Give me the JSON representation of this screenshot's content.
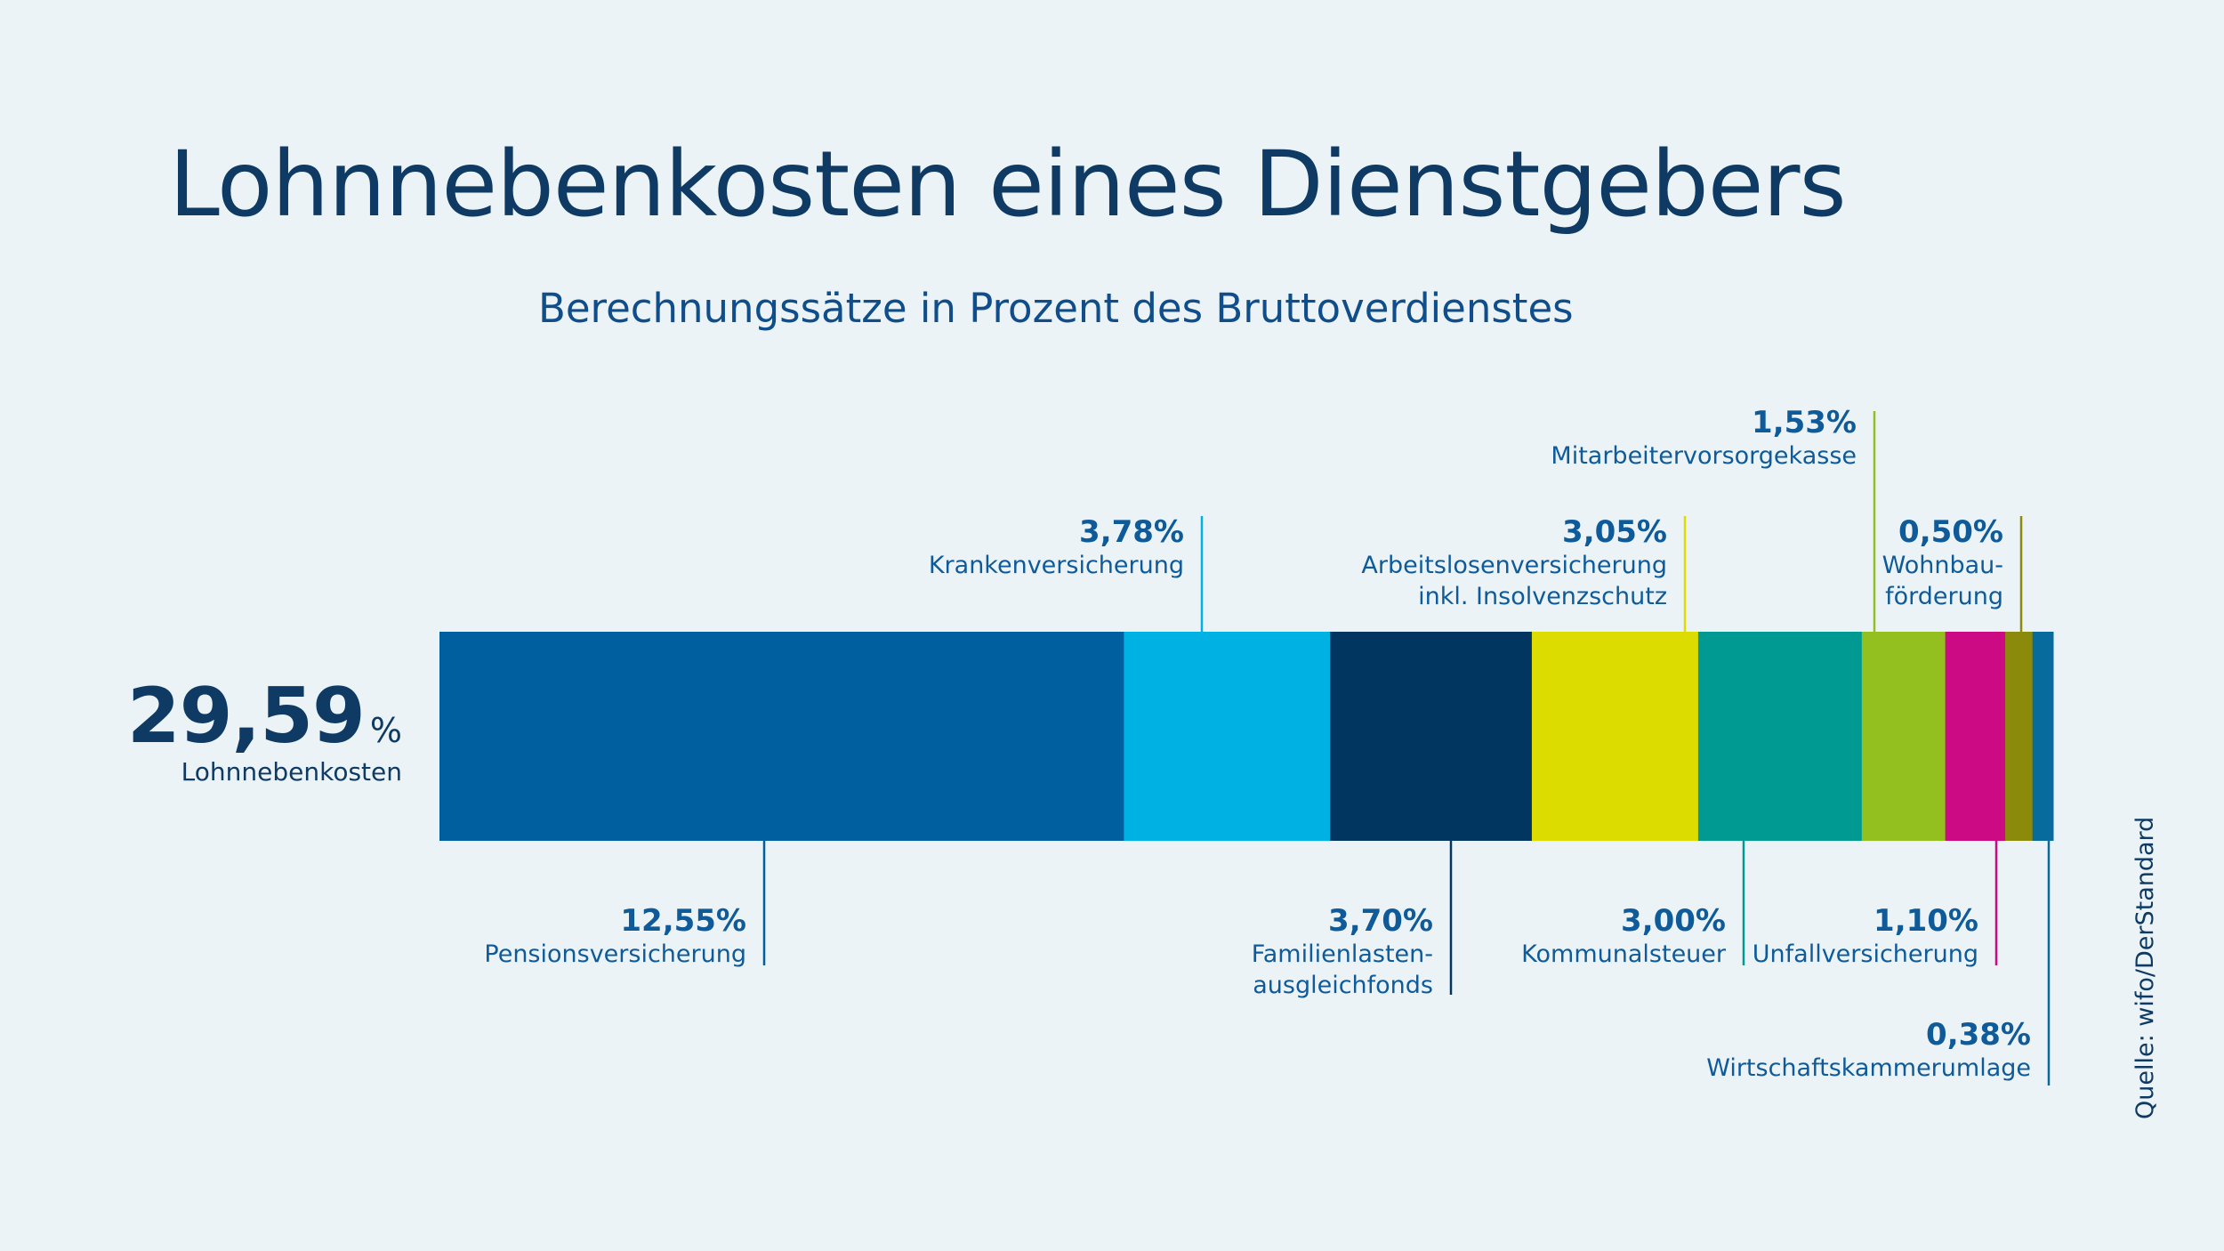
{
  "title": "Lohnnebenkosten eines Dienstgebers",
  "subtitle": "Berechnungssätze in Prozent des Bruttoverdienstes",
  "total": {
    "value": "29,59",
    "unit": "%",
    "label": "Lohnnebenkosten"
  },
  "source": "Quelle: wifo/DerStandard",
  "chart_data": {
    "type": "bar",
    "orientation": "horizontal-stacked",
    "title": "Lohnnebenkosten eines Dienstgebers",
    "subtitle": "Berechnungssätze in Prozent des Bruttoverdienstes",
    "total": 29.59,
    "segments": [
      {
        "name": "Pensionsversicherung",
        "value": 12.55,
        "label": "12,55%",
        "color": "#005f9e",
        "lines": [
          "Pensionsversicherung"
        ],
        "side": "below"
      },
      {
        "name": "Krankenversicherung",
        "value": 3.78,
        "label": "3,78%",
        "color": "#00b2e3",
        "lines": [
          "Krankenversicherung"
        ],
        "side": "above"
      },
      {
        "name": "Familienlastenausgleichsfonds",
        "value": 3.7,
        "label": "3,70%",
        "color": "#00365f",
        "lines": [
          "Familienlasten-",
          "ausgleichfonds"
        ],
        "side": "below"
      },
      {
        "name": "Arbeitslosenversicherung inkl. Insolvenzschutz",
        "value": 3.05,
        "label": "3,05%",
        "color": "#dcdc00",
        "lines": [
          "Arbeitslosenversicherung",
          "inkl. Insolvenzschutz"
        ],
        "side": "above"
      },
      {
        "name": "Kommunalsteuer",
        "value": 3.0,
        "label": "3,00%",
        "color": "#009a92",
        "lines": [
          "Kommunalsteuer"
        ],
        "side": "below"
      },
      {
        "name": "Mitarbeitervorsorgekasse",
        "value": 1.53,
        "label": "1,53%",
        "color": "#93c01f",
        "lines": [
          "Mitarbeitervorsorgekasse"
        ],
        "side": "above"
      },
      {
        "name": "Unfallversicherung",
        "value": 1.1,
        "label": "1,10%",
        "color": "#cc0a83",
        "lines": [
          "Unfallversicherung"
        ],
        "side": "below"
      },
      {
        "name": "Wohnbauförderung",
        "value": 0.5,
        "label": "0,50%",
        "color": "#8b8a0b",
        "lines": [
          "Wohnbau-",
          "förderung"
        ],
        "side": "above"
      },
      {
        "name": "Wirtschaftskammerumlage",
        "value": 0.38,
        "label": "0,38%",
        "color": "#086b9e",
        "lines": [
          "Wirtschaftskammerumlage"
        ],
        "side": "below"
      }
    ],
    "legend": "none",
    "grid": false
  }
}
